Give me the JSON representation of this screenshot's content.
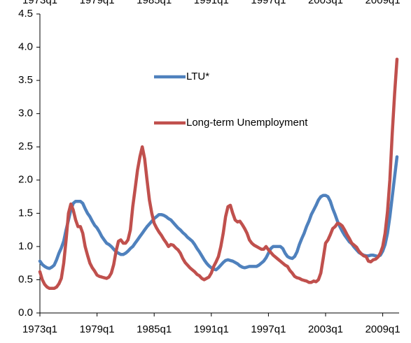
{
  "chart_data": {
    "type": "line",
    "categories": [
      "1973q1",
      null,
      null,
      null,
      null,
      null,
      null,
      null,
      null,
      null,
      null,
      null,
      null,
      null,
      null,
      null,
      null,
      null,
      null,
      null,
      null,
      null,
      null,
      null,
      "1979q1",
      null,
      null,
      null,
      null,
      null,
      null,
      null,
      null,
      null,
      null,
      null,
      null,
      null,
      null,
      null,
      null,
      null,
      null,
      null,
      null,
      null,
      null,
      null,
      "1985q1",
      null,
      null,
      null,
      null,
      null,
      null,
      null,
      null,
      null,
      null,
      null,
      null,
      null,
      null,
      null,
      null,
      null,
      null,
      null,
      null,
      null,
      null,
      null,
      "1991q1",
      null,
      null,
      null,
      null,
      null,
      null,
      null,
      null,
      null,
      null,
      null,
      null,
      null,
      null,
      null,
      null,
      null,
      null,
      null,
      null,
      null,
      null,
      null,
      "1997q1",
      null,
      null,
      null,
      null,
      null,
      null,
      null,
      null,
      null,
      null,
      null,
      null,
      null,
      null,
      null,
      null,
      null,
      null,
      null,
      null,
      null,
      null,
      null,
      "2003q1",
      null,
      null,
      null,
      null,
      null,
      null,
      null,
      null,
      null,
      null,
      null,
      null,
      null,
      null,
      null,
      null,
      null,
      null,
      null,
      null,
      null,
      null,
      null,
      "2009q1",
      null,
      null,
      null,
      null,
      null,
      null
    ],
    "series": [
      {
        "name": "LTU*",
        "color": "#4f81bd",
        "values": [
          0.78,
          0.73,
          0.7,
          0.68,
          0.67,
          0.69,
          0.72,
          0.8,
          0.9,
          0.98,
          1.08,
          1.25,
          1.4,
          1.55,
          1.65,
          1.68,
          1.68,
          1.68,
          1.65,
          1.57,
          1.5,
          1.45,
          1.38,
          1.32,
          1.28,
          1.22,
          1.15,
          1.1,
          1.05,
          1.03,
          1.0,
          0.96,
          0.92,
          0.9,
          0.88,
          0.88,
          0.9,
          0.93,
          0.97,
          1.0,
          1.05,
          1.1,
          1.15,
          1.2,
          1.25,
          1.3,
          1.34,
          1.38,
          1.42,
          1.45,
          1.48,
          1.48,
          1.47,
          1.45,
          1.42,
          1.4,
          1.36,
          1.32,
          1.28,
          1.25,
          1.21,
          1.18,
          1.14,
          1.11,
          1.08,
          1.03,
          0.97,
          0.92,
          0.86,
          0.8,
          0.75,
          0.71,
          0.68,
          0.66,
          0.65,
          0.68,
          0.72,
          0.76,
          0.79,
          0.8,
          0.79,
          0.78,
          0.76,
          0.74,
          0.71,
          0.69,
          0.68,
          0.69,
          0.7,
          0.7,
          0.7,
          0.7,
          0.72,
          0.75,
          0.78,
          0.83,
          0.9,
          0.97,
          1.0,
          1.0,
          1.0,
          1.0,
          0.97,
          0.9,
          0.85,
          0.83,
          0.82,
          0.85,
          0.92,
          1.03,
          1.12,
          1.2,
          1.3,
          1.38,
          1.48,
          1.55,
          1.62,
          1.7,
          1.75,
          1.77,
          1.77,
          1.75,
          1.68,
          1.57,
          1.48,
          1.38,
          1.3,
          1.23,
          1.17,
          1.12,
          1.07,
          1.04,
          0.99,
          0.95,
          0.91,
          0.89,
          0.87,
          0.86,
          0.86,
          0.87,
          0.87,
          0.86,
          0.85,
          0.87,
          0.93,
          1.03,
          1.2,
          1.45,
          1.75,
          2.05,
          2.35
        ]
      },
      {
        "name": "Long-term Unemployment",
        "color": "#c0504d",
        "values": [
          0.62,
          0.5,
          0.43,
          0.39,
          0.37,
          0.37,
          0.37,
          0.39,
          0.44,
          0.52,
          0.75,
          1.1,
          1.5,
          1.64,
          1.55,
          1.4,
          1.3,
          1.3,
          1.2,
          1.0,
          0.87,
          0.75,
          0.68,
          0.63,
          0.57,
          0.55,
          0.54,
          0.53,
          0.52,
          0.54,
          0.6,
          0.73,
          0.93,
          1.08,
          1.1,
          1.05,
          1.05,
          1.1,
          1.25,
          1.6,
          1.87,
          2.15,
          2.35,
          2.5,
          2.32,
          2.0,
          1.7,
          1.5,
          1.35,
          1.28,
          1.22,
          1.17,
          1.11,
          1.06,
          1.0,
          1.03,
          1.02,
          0.98,
          0.95,
          0.9,
          0.82,
          0.76,
          0.72,
          0.68,
          0.65,
          0.62,
          0.58,
          0.56,
          0.52,
          0.5,
          0.52,
          0.54,
          0.6,
          0.7,
          0.77,
          0.85,
          1.0,
          1.2,
          1.45,
          1.6,
          1.62,
          1.5,
          1.4,
          1.37,
          1.38,
          1.33,
          1.27,
          1.2,
          1.1,
          1.05,
          1.02,
          1.0,
          0.98,
          0.96,
          0.96,
          1.0,
          0.95,
          0.91,
          0.87,
          0.84,
          0.81,
          0.78,
          0.75,
          0.72,
          0.7,
          0.64,
          0.6,
          0.55,
          0.53,
          0.52,
          0.5,
          0.49,
          0.48,
          0.46,
          0.46,
          0.48,
          0.47,
          0.5,
          0.6,
          0.82,
          1.05,
          1.1,
          1.18,
          1.27,
          1.3,
          1.35,
          1.34,
          1.31,
          1.25,
          1.18,
          1.12,
          1.05,
          1.02,
          0.99,
          0.93,
          0.89,
          0.86,
          0.85,
          0.78,
          0.77,
          0.8,
          0.81,
          0.84,
          0.9,
          1.0,
          1.2,
          1.52,
          2.0,
          2.7,
          3.3,
          3.82
        ]
      }
    ],
    "ylim": [
      0,
      4.5
    ],
    "yticks": [
      {
        "value": 0,
        "label": "0.0"
      },
      0.5,
      {
        "value": 1,
        "label": "1.0"
      },
      1.5,
      {
        "value": 2,
        "label": "2.0"
      },
      2.5,
      {
        "value": 3,
        "label": "3.0"
      },
      3.5,
      {
        "value": 4,
        "label": "4.0"
      },
      4.5
    ],
    "grid": false
  }
}
